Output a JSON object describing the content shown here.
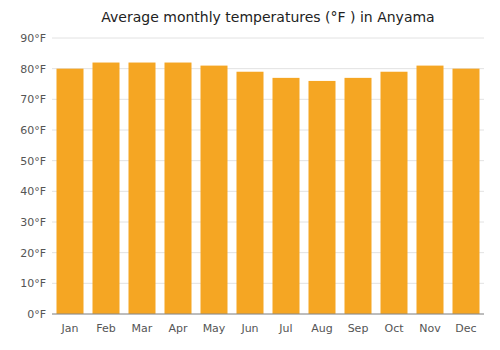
{
  "chart_data": {
    "type": "bar",
    "title": "Average monthly temperatures (°F ) in Anyama",
    "categories": [
      "Jan",
      "Feb",
      "Mar",
      "Apr",
      "May",
      "Jun",
      "Jul",
      "Aug",
      "Sep",
      "Oct",
      "Nov",
      "Dec"
    ],
    "values": [
      80,
      82,
      82,
      82,
      81,
      79,
      77,
      76,
      77,
      79,
      81,
      80
    ],
    "color": "#F5A623",
    "ylim": [
      0,
      90
    ],
    "yticks": [
      {
        "value": 0,
        "label": "0°F"
      },
      {
        "value": 10,
        "label": "10°F"
      },
      {
        "value": 20,
        "label": "20°F"
      },
      {
        "value": 30,
        "label": "30°F"
      },
      {
        "value": 40,
        "label": "40°F"
      },
      {
        "value": 50,
        "label": "50°F"
      },
      {
        "value": 60,
        "label": "60°F"
      },
      {
        "value": 70,
        "label": "70°F"
      },
      {
        "value": 80,
        "label": "80°F"
      },
      {
        "value": 90,
        "label": "90°F"
      }
    ],
    "grid": true
  }
}
